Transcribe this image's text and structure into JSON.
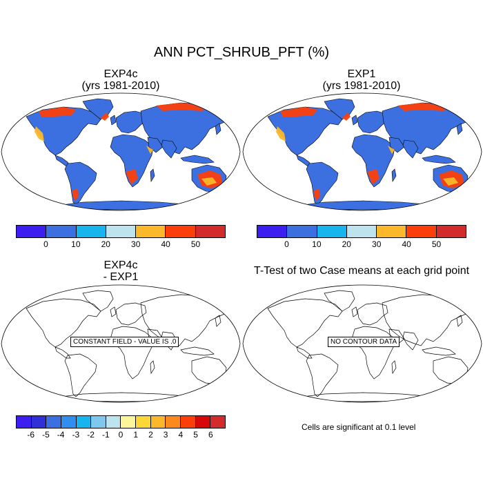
{
  "main_title": "ANN PCT_SHRUB_PFT (%)",
  "panels": [
    {
      "title_line1": "EXP4c",
      "title_line2": "(yrs 1981-2010)",
      "filled": true
    },
    {
      "title_line1": "EXP1",
      "title_line2": "(yrs 1981-2010)",
      "filled": true
    },
    {
      "title_line1": "EXP4c",
      "title_line2": "- EXP1",
      "filled": false,
      "notice": "CONSTANT FIELD - VALUE IS .0"
    },
    {
      "title_line1": "T-Test of two Case means at each grid point",
      "title_line2": "",
      "filled": false,
      "notice": "NO CONTOUR DATA"
    }
  ],
  "colorbar_top": {
    "colors": [
      "#3d1ef0",
      "#3c6fe0",
      "#18b4ee",
      "#bde3ef",
      "#fbb82a",
      "#fc3f0a",
      "#d32a2b"
    ],
    "labels": [
      "0",
      "10",
      "20",
      "30",
      "40",
      "50"
    ]
  },
  "colorbar_diff": {
    "colors": [
      "#3d1ef0",
      "#3030d8",
      "#3c6fe0",
      "#2f8ef0",
      "#18b4ee",
      "#7ec8ee",
      "#bde3ef",
      "#fbf69a",
      "#fbd838",
      "#fbb82a",
      "#fb8a1e",
      "#fc3f0a",
      "#d80808",
      "#d32a2b"
    ],
    "labels": [
      "-6",
      "-5",
      "-4",
      "-3",
      "-2",
      "-1",
      "0",
      "1",
      "2",
      "3",
      "4",
      "5",
      "6"
    ]
  },
  "significance_note": "Cells are significant at 0.1 level",
  "colors": {
    "land_base": "#3c6fe0",
    "shrub_hot": "#fc3f0a",
    "shrub_warm": "#fbb82a",
    "shrub_dark": "#d32a2b"
  }
}
